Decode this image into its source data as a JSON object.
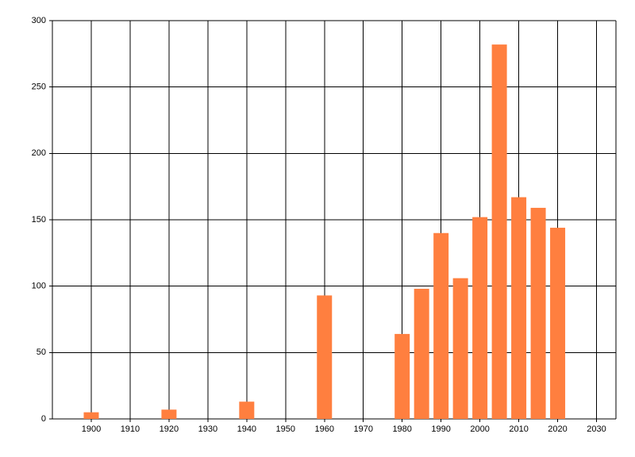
{
  "chart_data": {
    "type": "bar",
    "x": [
      1900,
      1920,
      1940,
      1960,
      1980,
      1985,
      1990,
      1995,
      2000,
      2005,
      2010,
      2015,
      2020
    ],
    "values": [
      5,
      7,
      13,
      93,
      64,
      98,
      140,
      106,
      152,
      282,
      167,
      159,
      144
    ],
    "color": "#ff7f3f",
    "xlim": [
      1890,
      2035
    ],
    "xticks": [
      1900,
      1910,
      1920,
      1930,
      1940,
      1950,
      1960,
      1970,
      1980,
      1990,
      2000,
      2010,
      2020,
      2030
    ],
    "ylim": [
      0,
      300
    ],
    "yticks": [
      0,
      50,
      100,
      150,
      200,
      250,
      300
    ],
    "grid": true
  }
}
